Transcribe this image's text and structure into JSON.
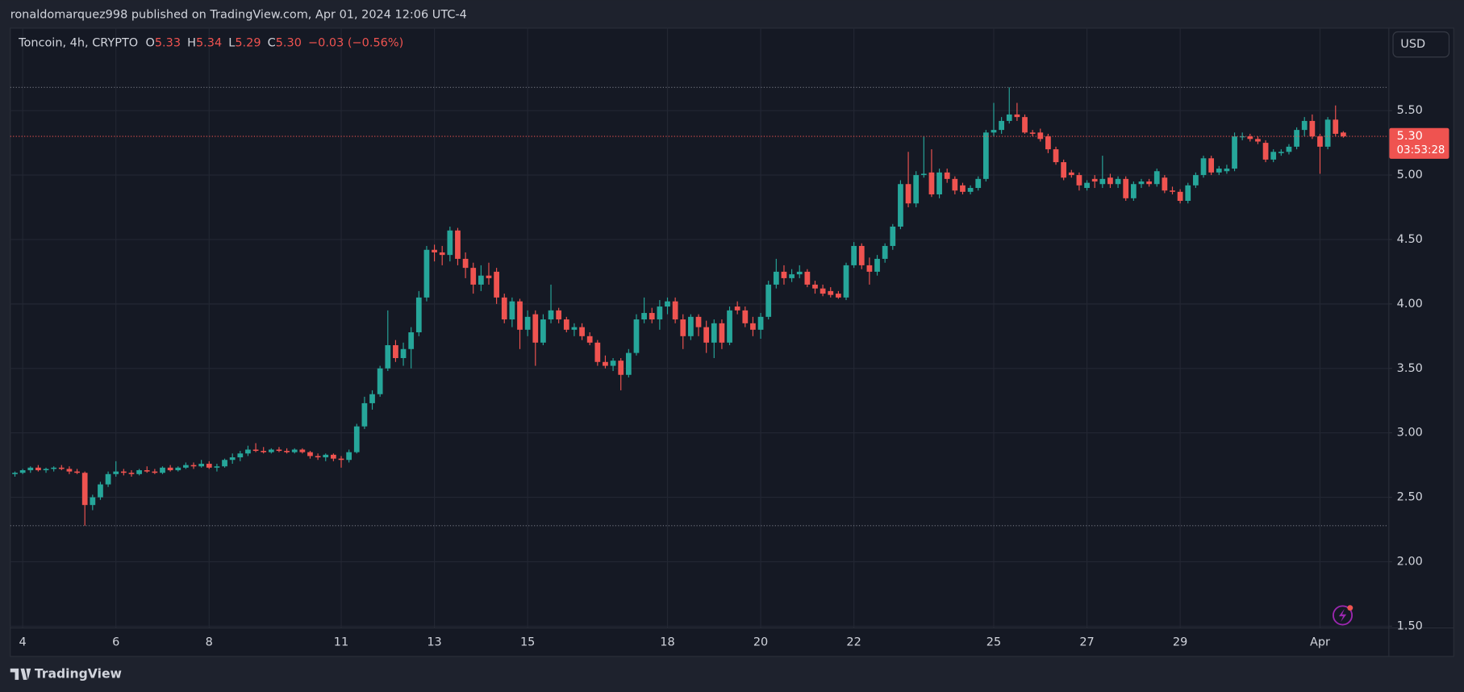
{
  "header": "ronaldomarquez998 published on TradingView.com, Apr 01, 2024 12:06 UTC-4",
  "footer": "TradingView",
  "chart_data": {
    "type": "candlestick",
    "legend": {
      "symbol": "Toncoin, 4h, CRYPTO",
      "items": [
        {
          "label": "O",
          "value": "5.33"
        },
        {
          "label": "H",
          "value": "5.34"
        },
        {
          "label": "L",
          "value": "5.29"
        },
        {
          "label": "C",
          "value": "5.30"
        }
      ],
      "change": "−0.03 (−0.56%)"
    },
    "currency": "USD",
    "price_label": "5.30",
    "countdown": "03:53:28",
    "up_color": "#26a69a",
    "down_color": "#ef5350",
    "grid": true,
    "ylim": [
      1.49,
      6.14
    ],
    "yticks": [
      {
        "value": 1.5,
        "label": "1.50"
      },
      {
        "value": 2,
        "label": "2.00"
      },
      {
        "value": 2.5,
        "label": "2.50"
      },
      {
        "value": 3,
        "label": "3.00"
      },
      {
        "value": 3.5,
        "label": "3.50"
      },
      {
        "value": 4,
        "label": "4.00"
      },
      {
        "value": 4.5,
        "label": "4.50"
      },
      {
        "value": 5,
        "label": "5.00"
      },
      {
        "value": 5.5,
        "label": "5.50"
      }
    ],
    "xlim": [
      -0.6,
      176.8
    ],
    "xticks": [
      {
        "value": 1,
        "label": "4"
      },
      {
        "value": 13,
        "label": "6"
      },
      {
        "value": 25,
        "label": "8"
      },
      {
        "value": 42,
        "label": "11"
      },
      {
        "value": 54,
        "label": "13"
      },
      {
        "value": 66,
        "label": "15"
      },
      {
        "value": 84,
        "label": "18"
      },
      {
        "value": 96,
        "label": "20"
      },
      {
        "value": 108,
        "label": "22"
      },
      {
        "value": 126,
        "label": "25"
      },
      {
        "value": 138,
        "label": "27"
      },
      {
        "value": 150,
        "label": "29"
      },
      {
        "value": 168,
        "label": "Apr"
      }
    ],
    "ohlc": [
      [
        2.68,
        2.7,
        2.66,
        2.69
      ],
      [
        2.69,
        2.72,
        2.68,
        2.71
      ],
      [
        2.71,
        2.74,
        2.69,
        2.73
      ],
      [
        2.73,
        2.75,
        2.7,
        2.71
      ],
      [
        2.71,
        2.73,
        2.69,
        2.72
      ],
      [
        2.72,
        2.74,
        2.7,
        2.73
      ],
      [
        2.73,
        2.75,
        2.71,
        2.72
      ],
      [
        2.72,
        2.74,
        2.68,
        2.7
      ],
      [
        2.7,
        2.72,
        2.68,
        2.69
      ],
      [
        2.69,
        2.7,
        2.28,
        2.44
      ],
      [
        2.44,
        2.52,
        2.4,
        2.5
      ],
      [
        2.5,
        2.62,
        2.48,
        2.6
      ],
      [
        2.6,
        2.7,
        2.58,
        2.68
      ],
      [
        2.68,
        2.78,
        2.66,
        2.7
      ],
      [
        2.7,
        2.72,
        2.67,
        2.69
      ],
      [
        2.69,
        2.71,
        2.66,
        2.68
      ],
      [
        2.68,
        2.72,
        2.67,
        2.71
      ],
      [
        2.71,
        2.74,
        2.69,
        2.7
      ],
      [
        2.7,
        2.72,
        2.68,
        2.69
      ],
      [
        2.69,
        2.74,
        2.68,
        2.73
      ],
      [
        2.73,
        2.75,
        2.7,
        2.71
      ],
      [
        2.71,
        2.74,
        2.7,
        2.73
      ],
      [
        2.73,
        2.77,
        2.72,
        2.75
      ],
      [
        2.75,
        2.77,
        2.72,
        2.74
      ],
      [
        2.74,
        2.79,
        2.73,
        2.76
      ],
      [
        2.76,
        2.78,
        2.72,
        2.73
      ],
      [
        2.73,
        2.76,
        2.7,
        2.74
      ],
      [
        2.74,
        2.8,
        2.73,
        2.79
      ],
      [
        2.79,
        2.84,
        2.76,
        2.81
      ],
      [
        2.81,
        2.86,
        2.78,
        2.84
      ],
      [
        2.84,
        2.9,
        2.82,
        2.87
      ],
      [
        2.87,
        2.92,
        2.85,
        2.86
      ],
      [
        2.86,
        2.89,
        2.84,
        2.85
      ],
      [
        2.85,
        2.88,
        2.84,
        2.87
      ],
      [
        2.87,
        2.89,
        2.85,
        2.86
      ],
      [
        2.86,
        2.88,
        2.84,
        2.85
      ],
      [
        2.85,
        2.88,
        2.84,
        2.87
      ],
      [
        2.87,
        2.88,
        2.84,
        2.85
      ],
      [
        2.85,
        2.86,
        2.8,
        2.82
      ],
      [
        2.82,
        2.84,
        2.79,
        2.81
      ],
      [
        2.81,
        2.84,
        2.78,
        2.83
      ],
      [
        2.83,
        2.84,
        2.78,
        2.8
      ],
      [
        2.8,
        2.82,
        2.73,
        2.79
      ],
      [
        2.79,
        2.87,
        2.77,
        2.85
      ],
      [
        2.85,
        3.07,
        2.84,
        3.05
      ],
      [
        3.05,
        3.28,
        3.03,
        3.23
      ],
      [
        3.23,
        3.33,
        3.18,
        3.3
      ],
      [
        3.3,
        3.52,
        3.28,
        3.5
      ],
      [
        3.5,
        3.95,
        3.48,
        3.68
      ],
      [
        3.68,
        3.72,
        3.55,
        3.58
      ],
      [
        3.58,
        3.7,
        3.52,
        3.65
      ],
      [
        3.65,
        3.82,
        3.5,
        3.78
      ],
      [
        3.78,
        4.1,
        3.75,
        4.05
      ],
      [
        4.05,
        4.45,
        4.02,
        4.42
      ],
      [
        4.42,
        4.46,
        4.33,
        4.4
      ],
      [
        4.4,
        4.45,
        4.3,
        4.38
      ],
      [
        4.38,
        4.6,
        4.33,
        4.57
      ],
      [
        4.57,
        4.59,
        4.3,
        4.35
      ],
      [
        4.35,
        4.4,
        4.2,
        4.28
      ],
      [
        4.28,
        4.32,
        4.08,
        4.15
      ],
      [
        4.15,
        4.3,
        4.1,
        4.22
      ],
      [
        4.22,
        4.32,
        4.15,
        4.2
      ],
      [
        4.25,
        4.28,
        4.0,
        4.05
      ],
      [
        4.05,
        4.08,
        3.85,
        3.88
      ],
      [
        3.88,
        4.05,
        3.82,
        4.02
      ],
      [
        4.02,
        4.04,
        3.65,
        3.8
      ],
      [
        3.8,
        3.95,
        3.75,
        3.9
      ],
      [
        3.92,
        3.95,
        3.52,
        3.7
      ],
      [
        3.7,
        3.92,
        3.68,
        3.88
      ],
      [
        3.88,
        4.15,
        3.85,
        3.95
      ],
      [
        3.95,
        3.97,
        3.85,
        3.88
      ],
      [
        3.88,
        3.9,
        3.78,
        3.8
      ],
      [
        3.8,
        3.85,
        3.75,
        3.82
      ],
      [
        3.82,
        3.85,
        3.72,
        3.75
      ],
      [
        3.75,
        3.78,
        3.68,
        3.7
      ],
      [
        3.7,
        3.72,
        3.52,
        3.55
      ],
      [
        3.55,
        3.6,
        3.5,
        3.52
      ],
      [
        3.52,
        3.58,
        3.48,
        3.56
      ],
      [
        3.56,
        3.58,
        3.33,
        3.45
      ],
      [
        3.45,
        3.65,
        3.43,
        3.62
      ],
      [
        3.62,
        3.92,
        3.6,
        3.88
      ],
      [
        3.88,
        4.05,
        3.85,
        3.93
      ],
      [
        3.93,
        3.97,
        3.85,
        3.88
      ],
      [
        3.88,
        4.03,
        3.8,
        3.98
      ],
      [
        3.98,
        4.05,
        3.92,
        4.02
      ],
      [
        4.02,
        4.05,
        3.85,
        3.88
      ],
      [
        3.88,
        3.92,
        3.65,
        3.75
      ],
      [
        3.75,
        3.92,
        3.72,
        3.9
      ],
      [
        3.9,
        3.92,
        3.75,
        3.82
      ],
      [
        3.82,
        3.87,
        3.62,
        3.7
      ],
      [
        3.7,
        3.88,
        3.58,
        3.85
      ],
      [
        3.85,
        3.88,
        3.65,
        3.7
      ],
      [
        3.7,
        3.98,
        3.68,
        3.95
      ],
      [
        3.98,
        4.02,
        3.92,
        3.95
      ],
      [
        3.95,
        3.98,
        3.82,
        3.85
      ],
      [
        3.85,
        3.9,
        3.75,
        3.8
      ],
      [
        3.8,
        3.93,
        3.73,
        3.9
      ],
      [
        3.9,
        4.18,
        3.88,
        4.15
      ],
      [
        4.15,
        4.35,
        4.12,
        4.25
      ],
      [
        4.25,
        4.3,
        4.15,
        4.2
      ],
      [
        4.2,
        4.27,
        4.17,
        4.23
      ],
      [
        4.23,
        4.3,
        4.2,
        4.25
      ],
      [
        4.25,
        4.27,
        4.13,
        4.15
      ],
      [
        4.15,
        4.18,
        4.08,
        4.12
      ],
      [
        4.12,
        4.15,
        4.06,
        4.08
      ],
      [
        4.1,
        4.13,
        4.05,
        4.07
      ],
      [
        4.08,
        4.1,
        4.04,
        4.05
      ],
      [
        4.05,
        4.32,
        4.03,
        4.3
      ],
      [
        4.3,
        4.48,
        4.28,
        4.45
      ],
      [
        4.45,
        4.47,
        4.27,
        4.3
      ],
      [
        4.3,
        4.36,
        4.15,
        4.25
      ],
      [
        4.25,
        4.38,
        4.22,
        4.35
      ],
      [
        4.35,
        4.47,
        4.32,
        4.45
      ],
      [
        4.45,
        4.62,
        4.42,
        4.6
      ],
      [
        4.6,
        4.96,
        4.58,
        4.93
      ],
      [
        4.93,
        5.18,
        4.75,
        4.78
      ],
      [
        4.78,
        5.03,
        4.75,
        5.0
      ],
      [
        5.0,
        5.3,
        4.98,
        5.01
      ],
      [
        5.02,
        5.2,
        4.83,
        4.85
      ],
      [
        4.85,
        5.05,
        4.82,
        5.02
      ],
      [
        5.02,
        5.05,
        4.94,
        4.97
      ],
      [
        4.97,
        4.99,
        4.85,
        4.88
      ],
      [
        4.92,
        4.94,
        4.85,
        4.87
      ],
      [
        4.87,
        4.92,
        4.85,
        4.9
      ],
      [
        4.9,
        4.99,
        4.88,
        4.97
      ],
      [
        4.97,
        5.35,
        4.95,
        5.33
      ],
      [
        5.33,
        5.56,
        5.3,
        5.35
      ],
      [
        5.35,
        5.45,
        5.32,
        5.42
      ],
      [
        5.42,
        5.68,
        5.4,
        5.47
      ],
      [
        5.47,
        5.56,
        5.42,
        5.45
      ],
      [
        5.45,
        5.47,
        5.32,
        5.33
      ],
      [
        5.33,
        5.35,
        5.3,
        5.32
      ],
      [
        5.33,
        5.36,
        5.26,
        5.28
      ],
      [
        5.3,
        5.32,
        5.17,
        5.2
      ],
      [
        5.2,
        5.22,
        5.08,
        5.1
      ],
      [
        5.1,
        5.12,
        4.96,
        4.98
      ],
      [
        5.02,
        5.04,
        4.98,
        5.0
      ],
      [
        5.0,
        5.02,
        4.88,
        4.92
      ],
      [
        4.9,
        4.96,
        4.88,
        4.94
      ],
      [
        4.97,
        5.0,
        4.9,
        4.95
      ],
      [
        4.93,
        5.15,
        4.9,
        4.97
      ],
      [
        4.98,
        5.01,
        4.9,
        4.93
      ],
      [
        4.93,
        4.99,
        4.9,
        4.97
      ],
      [
        4.97,
        4.99,
        4.8,
        4.82
      ],
      [
        4.82,
        4.95,
        4.8,
        4.93
      ],
      [
        4.93,
        4.97,
        4.9,
        4.95
      ],
      [
        4.95,
        4.97,
        4.91,
        4.93
      ],
      [
        4.93,
        5.05,
        4.91,
        5.03
      ],
      [
        4.98,
        5.0,
        4.86,
        4.88
      ],
      [
        4.88,
        4.91,
        4.85,
        4.87
      ],
      [
        4.87,
        4.89,
        4.78,
        4.8
      ],
      [
        4.8,
        4.94,
        4.78,
        4.92
      ],
      [
        4.92,
        5.02,
        4.9,
        5.0
      ],
      [
        5.0,
        5.15,
        4.98,
        5.13
      ],
      [
        5.13,
        5.15,
        5.0,
        5.02
      ],
      [
        5.02,
        5.07,
        5.0,
        5.05
      ],
      [
        5.03,
        5.08,
        5.01,
        5.05
      ],
      [
        5.05,
        5.33,
        5.03,
        5.3
      ],
      [
        5.3,
        5.33,
        5.27,
        5.3
      ],
      [
        5.3,
        5.32,
        5.26,
        5.28
      ],
      [
        5.28,
        5.3,
        5.24,
        5.26
      ],
      [
        5.25,
        5.27,
        5.1,
        5.12
      ],
      [
        5.12,
        5.2,
        5.1,
        5.18
      ],
      [
        5.17,
        5.2,
        5.15,
        5.18
      ],
      [
        5.18,
        5.24,
        5.16,
        5.22
      ],
      [
        5.22,
        5.37,
        5.2,
        5.35
      ],
      [
        5.35,
        5.45,
        5.3,
        5.42
      ],
      [
        5.42,
        5.47,
        5.28,
        5.3
      ],
      [
        5.3,
        5.32,
        5.01,
        5.22
      ],
      [
        5.22,
        5.45,
        5.2,
        5.43
      ],
      [
        5.43,
        5.54,
        5.3,
        5.32
      ],
      [
        5.33,
        5.34,
        5.29,
        5.3
      ]
    ]
  }
}
